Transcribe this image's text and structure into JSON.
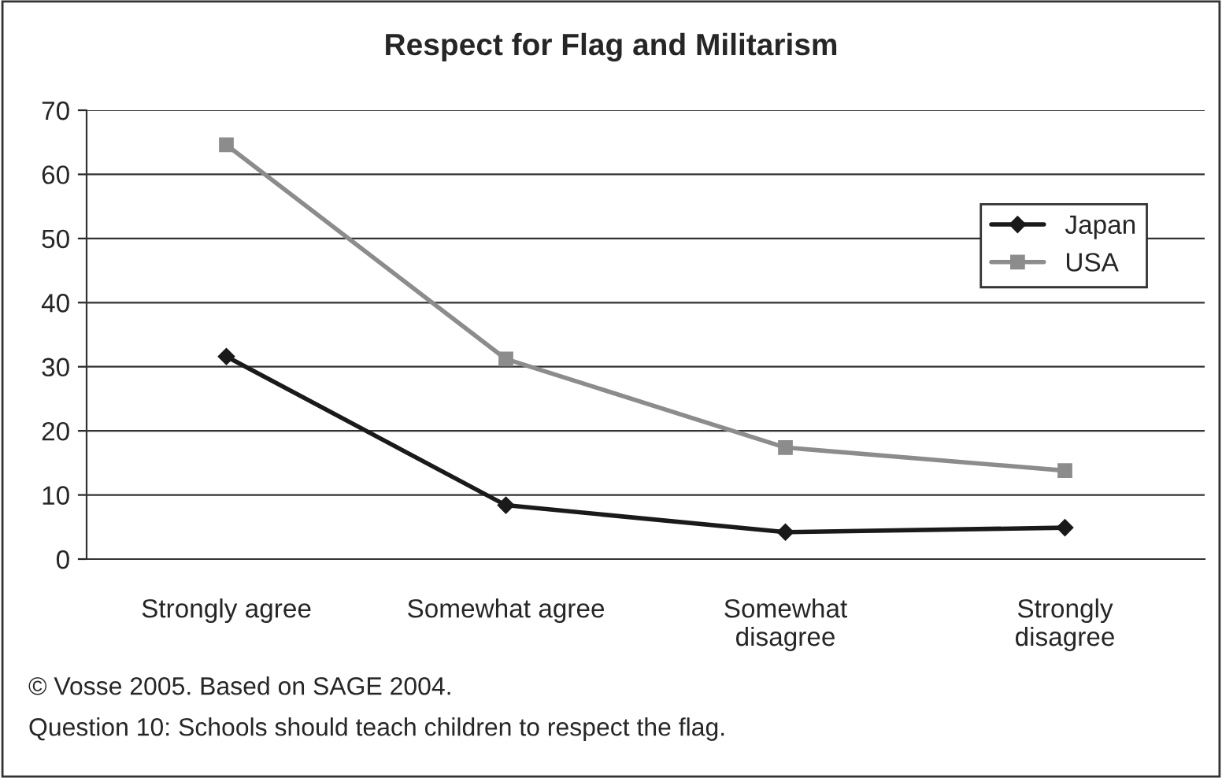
{
  "chart_data": {
    "type": "line",
    "title": "Respect for Flag and Militarism",
    "categories": [
      "Strongly agree",
      "Somewhat agree",
      "Somewhat\ndisagree",
      "Strongly\ndisagree"
    ],
    "series": [
      {
        "name": "Japan",
        "color": "#1a1a1a",
        "marker": "diamond",
        "values": [
          31.6,
          8.4,
          4.2,
          4.9
        ]
      },
      {
        "name": "USA",
        "color": "#8c8c8c",
        "marker": "square",
        "values": [
          64.6,
          31.2,
          17.4,
          13.8
        ]
      }
    ],
    "ylim": [
      0,
      70
    ],
    "yticks": [
      0,
      10,
      20,
      30,
      40,
      50,
      60,
      70
    ],
    "grid": "y",
    "legend": "top right",
    "annotations": [
      "© Vosse 2005. Based on SAGE 2004.",
      "Question 10: Schools should teach children to respect the flag."
    ]
  }
}
